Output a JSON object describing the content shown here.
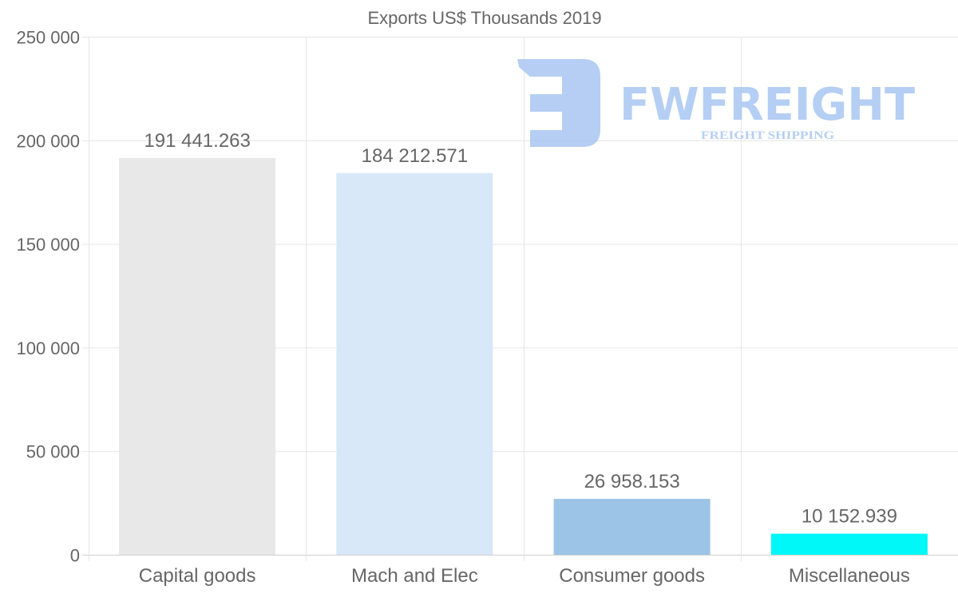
{
  "chart_data": {
    "type": "bar",
    "title": "Exports US$ Thousands 2019",
    "xlabel": "",
    "ylabel": "",
    "categories": [
      "Capital goods",
      "Mach and Elec",
      "Consumer goods",
      "Miscellaneous"
    ],
    "values": [
      191441.263,
      184212.571,
      26958.153,
      10152.939
    ],
    "data_labels": [
      "191 441.263",
      "184 212.571",
      "26 958.153",
      "10 152.939"
    ],
    "colors": [
      "#e8e8e8",
      "#d8e8f9",
      "#9cc4e7",
      "#00f8f8"
    ],
    "ylim": [
      0,
      250000
    ],
    "yticks": [
      0,
      50000,
      100000,
      150000,
      200000,
      250000
    ],
    "ytick_labels": [
      "0",
      "50 000",
      "100 000",
      "150 000",
      "200 000",
      "250 000"
    ],
    "grid": true
  },
  "watermark": {
    "brand": "FWFREIGHT",
    "tagline": "FREIGHT SHIPPING",
    "color": "#a9c6f1"
  }
}
